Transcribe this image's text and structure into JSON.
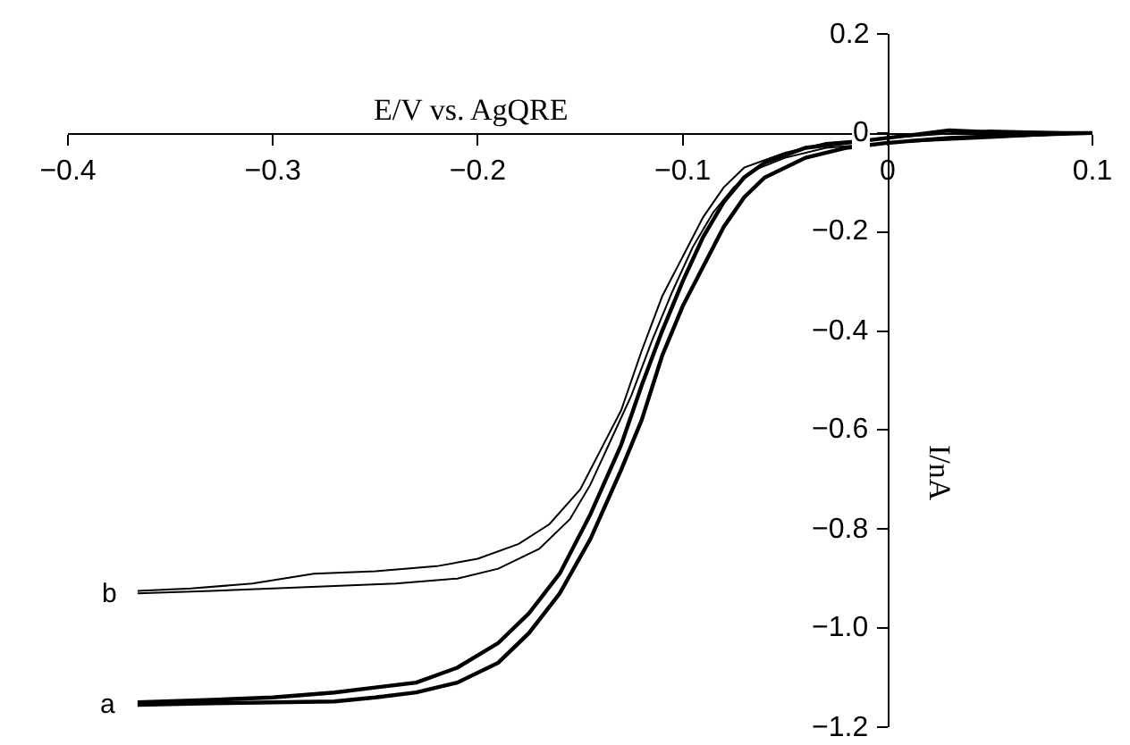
{
  "chart_data": {
    "type": "line",
    "xlabel": "E/V vs. AgQRE",
    "ylabel": "I/nA",
    "xlim": [
      -0.4,
      0.1
    ],
    "ylim": [
      -1.2,
      0.2
    ],
    "xticks": [
      -0.4,
      -0.3,
      -0.2,
      -0.1,
      0,
      0.1
    ],
    "yticks": [
      -1.2,
      {
        "value": -1.0,
        "label": "−1.0"
      },
      -0.8,
      -0.6,
      -0.4,
      -0.2,
      0,
      0.2
    ],
    "legend": false,
    "marker": "none",
    "line_style": "solid",
    "series": [
      {
        "name": "a",
        "color": "#000000",
        "x": [
          -0.366,
          -0.33,
          -0.3,
          -0.27,
          -0.25,
          -0.23,
          -0.21,
          -0.19,
          -0.175,
          -0.16,
          -0.145,
          -0.13,
          -0.12,
          -0.11,
          -0.1,
          -0.09,
          -0.08,
          -0.07,
          -0.06,
          -0.04,
          -0.02,
          0,
          0.03,
          0.06,
          0.1,
          0.06,
          0.03,
          0,
          -0.02,
          -0.04,
          -0.06,
          -0.07,
          -0.08,
          -0.09,
          -0.1,
          -0.11,
          -0.12,
          -0.13,
          -0.145,
          -0.16,
          -0.175,
          -0.19,
          -0.21,
          -0.23,
          -0.25,
          -0.27,
          -0.3,
          -0.33,
          -0.366
        ],
        "values": [
          -1.155,
          -1.152,
          -1.15,
          -1.148,
          -1.14,
          -1.13,
          -1.11,
          -1.07,
          -1.01,
          -0.93,
          -0.82,
          -0.68,
          -0.58,
          -0.45,
          -0.35,
          -0.27,
          -0.19,
          -0.13,
          -0.09,
          -0.05,
          -0.03,
          -0.02,
          -0.01,
          -0.005,
          0.0,
          0.0,
          0.005,
          -0.01,
          -0.02,
          -0.03,
          -0.06,
          -0.09,
          -0.14,
          -0.21,
          -0.3,
          -0.4,
          -0.51,
          -0.63,
          -0.77,
          -0.89,
          -0.97,
          -1.03,
          -1.08,
          -1.11,
          -1.12,
          -1.13,
          -1.14,
          -1.145,
          -1.15
        ]
      },
      {
        "name": "b",
        "color": "#000000",
        "x": [
          -0.366,
          -0.33,
          -0.3,
          -0.27,
          -0.24,
          -0.21,
          -0.19,
          -0.17,
          -0.155,
          -0.145,
          -0.135,
          -0.125,
          -0.115,
          -0.105,
          -0.095,
          -0.085,
          -0.075,
          -0.065,
          -0.05,
          -0.03,
          0,
          0.05,
          0.1,
          0.05,
          0,
          -0.03,
          -0.05,
          -0.07,
          -0.08,
          -0.09,
          -0.1,
          -0.11,
          -0.12,
          -0.13,
          -0.14,
          -0.15,
          -0.165,
          -0.18,
          -0.2,
          -0.22,
          -0.25,
          -0.28,
          -0.31,
          -0.34,
          -0.366
        ],
        "values": [
          -0.93,
          -0.925,
          -0.92,
          -0.915,
          -0.91,
          -0.9,
          -0.88,
          -0.84,
          -0.78,
          -0.71,
          -0.62,
          -0.53,
          -0.42,
          -0.32,
          -0.23,
          -0.16,
          -0.11,
          -0.075,
          -0.05,
          -0.03,
          -0.02,
          -0.01,
          0.0,
          0.005,
          -0.01,
          -0.02,
          -0.04,
          -0.07,
          -0.11,
          -0.17,
          -0.25,
          -0.33,
          -0.44,
          -0.56,
          -0.64,
          -0.72,
          -0.79,
          -0.83,
          -0.86,
          -0.875,
          -0.885,
          -0.89,
          -0.91,
          -0.92,
          -0.925
        ]
      }
    ]
  }
}
